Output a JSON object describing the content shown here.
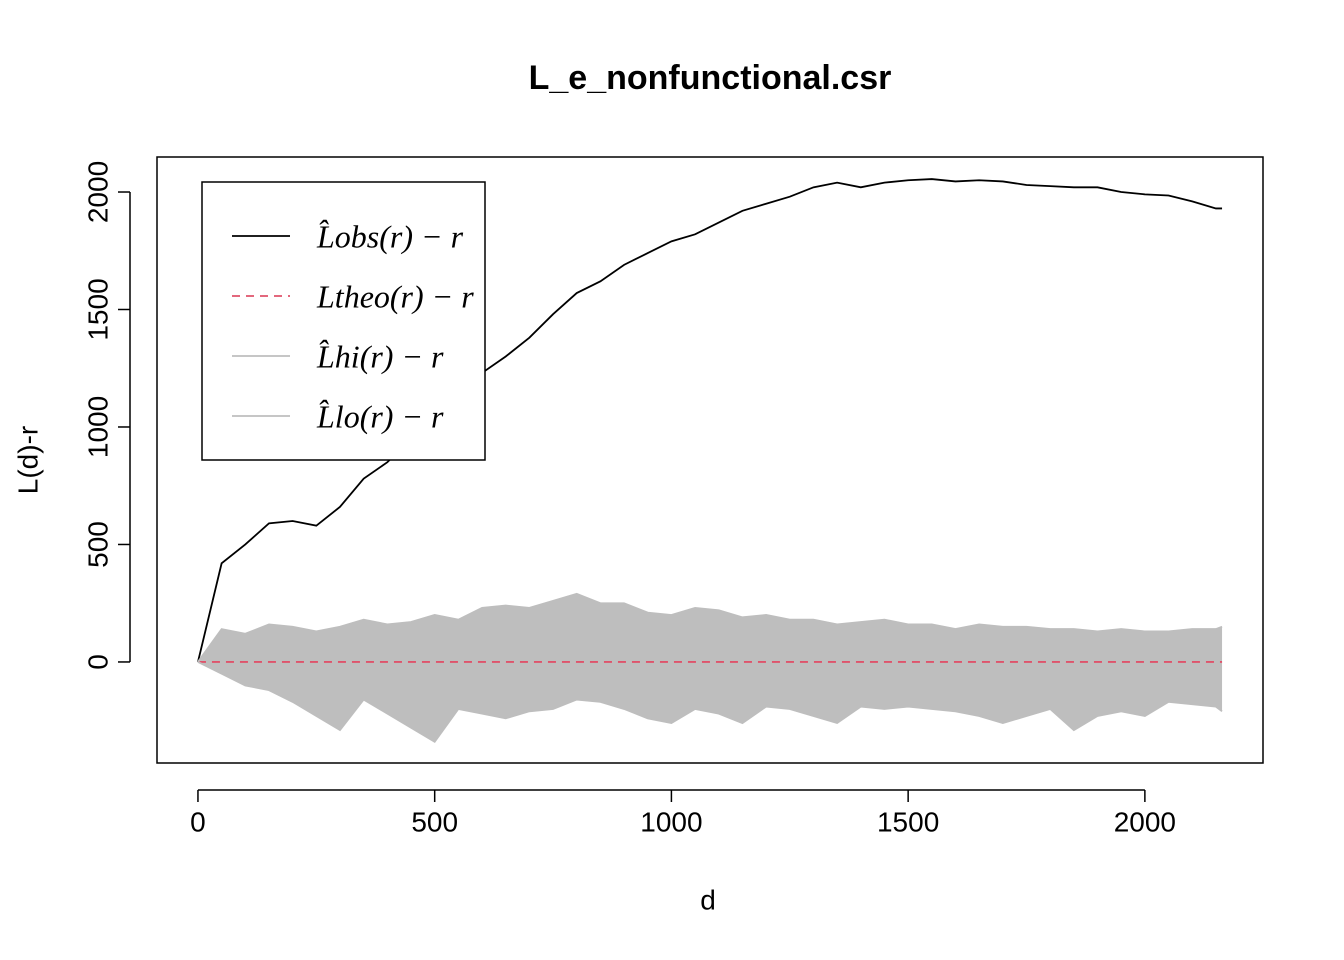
{
  "chart_data": {
    "type": "line",
    "title": "L_e_nonfunctional.csr",
    "x_label": "d",
    "y_label": "L(d)-r",
    "x": [
      0,
      50,
      100,
      150,
      200,
      250,
      300,
      350,
      400,
      450,
      500,
      550,
      600,
      650,
      700,
      750,
      800,
      850,
      900,
      950,
      1000,
      1050,
      1100,
      1150,
      1200,
      1250,
      1300,
      1350,
      1400,
      1450,
      1500,
      1550,
      1600,
      1650,
      1700,
      1750,
      1800,
      1850,
      1900,
      1950,
      2000,
      2050,
      2100,
      2150,
      2163
    ],
    "series": [
      {
        "name": "L̂obs(r) − r",
        "color": "#000000",
        "dash": false,
        "values": [
          0,
          420,
          500,
          590,
          600,
          580,
          660,
          780,
          850,
          950,
          1060,
          1120,
          1230,
          1300,
          1380,
          1480,
          1570,
          1620,
          1690,
          1740,
          1790,
          1820,
          1870,
          1920,
          1950,
          1980,
          2020,
          2040,
          2020,
          2040,
          2050,
          2055,
          2045,
          2050,
          2045,
          2030,
          2025,
          2020,
          2020,
          2000,
          1990,
          1985,
          1960,
          1930,
          1930
        ]
      },
      {
        "name": "Ltheo(r) − r",
        "color": "#df536b",
        "dash": true,
        "values": [
          0,
          0,
          0,
          0,
          0,
          0,
          0,
          0,
          0,
          0,
          0,
          0,
          0,
          0,
          0,
          0,
          0,
          0,
          0,
          0,
          0,
          0,
          0,
          0,
          0,
          0,
          0,
          0,
          0,
          0,
          0,
          0,
          0,
          0,
          0,
          0,
          0,
          0,
          0,
          0,
          0,
          0,
          0,
          0,
          0
        ]
      },
      {
        "name": "L̂hi(r) − r",
        "color": "#bebebe",
        "dash": false,
        "values": [
          0,
          140,
          120,
          160,
          150,
          130,
          150,
          180,
          160,
          170,
          200,
          180,
          230,
          240,
          230,
          260,
          290,
          250,
          250,
          210,
          200,
          230,
          220,
          190,
          200,
          180,
          180,
          160,
          170,
          180,
          160,
          160,
          140,
          160,
          150,
          150,
          140,
          140,
          130,
          140,
          130,
          130,
          140,
          140,
          150
        ]
      },
      {
        "name": "L̂lo(r) − r",
        "color": "#bebebe",
        "dash": false,
        "values": [
          0,
          -50,
          -100,
          -120,
          -170,
          -230,
          -290,
          -160,
          -220,
          -280,
          -340,
          -200,
          -220,
          -240,
          -210,
          -200,
          -160,
          -170,
          -200,
          -240,
          -260,
          -200,
          -220,
          -260,
          -190,
          -200,
          -230,
          -260,
          -190,
          -200,
          -190,
          -200,
          -210,
          -230,
          -260,
          -230,
          -200,
          -290,
          -230,
          -210,
          -230,
          -170,
          -180,
          -190,
          -210
        ]
      }
    ],
    "envelope": true,
    "xlim": [
      -86.5,
      2249.5
    ],
    "ylim": [
      -430,
      2149
    ],
    "xticks": [
      0,
      500,
      1000,
      1500,
      2000
    ],
    "yticks": [
      0,
      500,
      1000,
      1500,
      2000
    ],
    "legend": "top-left"
  }
}
